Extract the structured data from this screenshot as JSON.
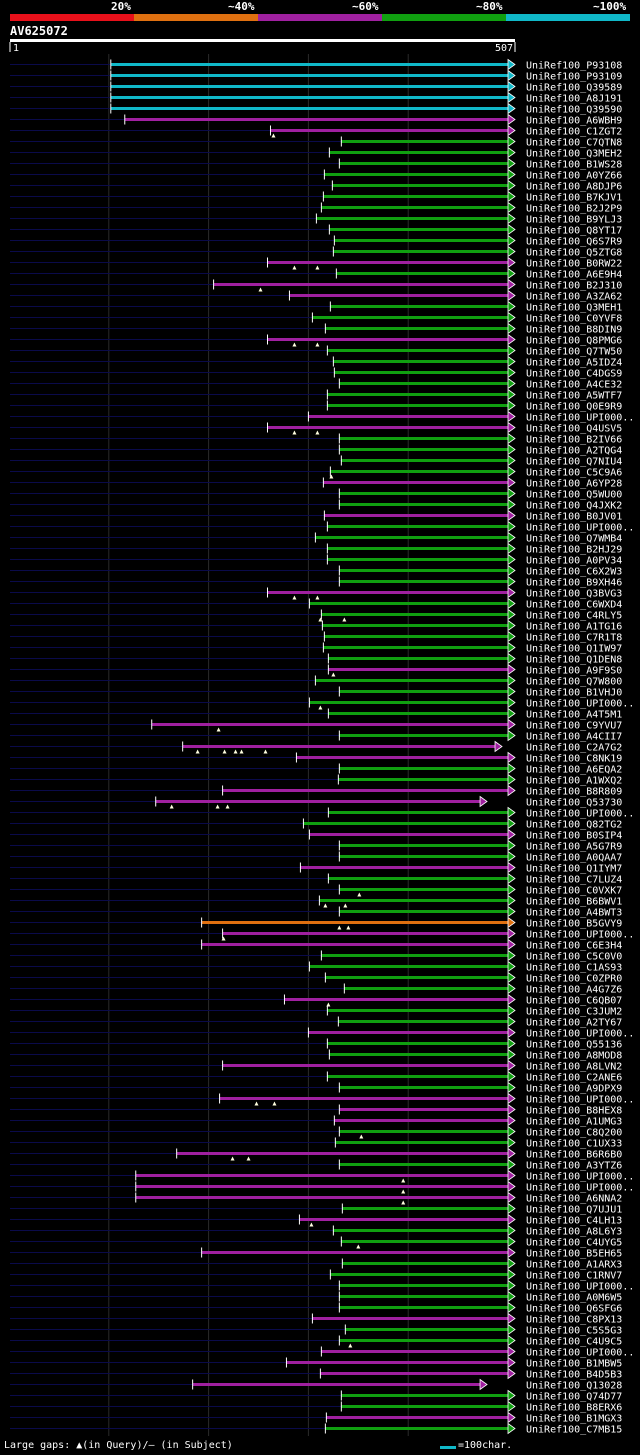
{
  "chart_data": {
    "type": "blast-alignment-graphic",
    "query": "AV625072",
    "query_start": 1,
    "query_end": 507,
    "identity_legend": [
      {
        "label": "20%",
        "color": "#e8101a"
      },
      {
        "label": "~40%",
        "color": "#e07010"
      },
      {
        "label": "~60%",
        "color": "#a020a0"
      },
      {
        "label": "~80%",
        "color": "#10a010"
      },
      {
        "label": "~100%",
        "color": "#10b8c8"
      }
    ],
    "hits": [
      {
        "name": "UniRef100_P93108",
        "start": 102,
        "end": 507,
        "color": "#10b8c8",
        "gaps": []
      },
      {
        "name": "UniRef100_P93109",
        "start": 102,
        "end": 507,
        "color": "#10b8c8",
        "gaps": []
      },
      {
        "name": "UniRef100_Q39589",
        "start": 102,
        "end": 507,
        "color": "#10b8c8",
        "gaps": []
      },
      {
        "name": "UniRef100_A8J191",
        "start": 102,
        "end": 507,
        "color": "#10b8c8",
        "gaps": []
      },
      {
        "name": "UniRef100_Q39590",
        "start": 102,
        "end": 507,
        "color": "#10b8c8",
        "gaps": []
      },
      {
        "name": "UniRef100_A6WBH9",
        "start": 116,
        "end": 507,
        "color": "#a020a0",
        "gaps": []
      },
      {
        "name": "UniRef100_C1ZGT2",
        "start": 262,
        "end": 507,
        "color": "#a020a0",
        "gaps": [
          265
        ]
      },
      {
        "name": "UniRef100_C7QTN8",
        "start": 333,
        "end": 507,
        "color": "#10a010",
        "gaps": []
      },
      {
        "name": "UniRef100_Q3MEH2",
        "start": 321,
        "end": 507,
        "color": "#10a010",
        "gaps": []
      },
      {
        "name": "UniRef100_B1WS28",
        "start": 331,
        "end": 507,
        "color": "#10a010",
        "gaps": []
      },
      {
        "name": "UniRef100_A0YZ66",
        "start": 316,
        "end": 507,
        "color": "#10a010",
        "gaps": []
      },
      {
        "name": "UniRef100_A8DJP6",
        "start": 324,
        "end": 507,
        "color": "#10a010",
        "gaps": []
      },
      {
        "name": "UniRef100_B7KJV1",
        "start": 315,
        "end": 507,
        "color": "#10a010",
        "gaps": []
      },
      {
        "name": "UniRef100_B2J2P9",
        "start": 313,
        "end": 507,
        "color": "#10a010",
        "gaps": []
      },
      {
        "name": "UniRef100_B9YLJ3",
        "start": 308,
        "end": 507,
        "color": "#10a010",
        "gaps": []
      },
      {
        "name": "UniRef100_Q8YT17",
        "start": 321,
        "end": 507,
        "color": "#10a010",
        "gaps": []
      },
      {
        "name": "UniRef100_Q6S7R9",
        "start": 326,
        "end": 507,
        "color": "#10a010",
        "gaps": []
      },
      {
        "name": "UniRef100_Q5ZTG8",
        "start": 325,
        "end": 507,
        "color": "#10a010",
        "gaps": []
      },
      {
        "name": "UniRef100_B0RW22",
        "start": 259,
        "end": 507,
        "color": "#a020a0",
        "gaps": [
          286,
          309
        ]
      },
      {
        "name": "UniRef100_A6E9H4",
        "start": 328,
        "end": 507,
        "color": "#10a010",
        "gaps": []
      },
      {
        "name": "UniRef100_B2J310",
        "start": 205,
        "end": 507,
        "color": "#a020a0",
        "gaps": [
          252
        ]
      },
      {
        "name": "UniRef100_A3ZA62",
        "start": 281,
        "end": 507,
        "color": "#a020a0",
        "gaps": []
      },
      {
        "name": "UniRef100_Q3MEH1",
        "start": 322,
        "end": 507,
        "color": "#10a010",
        "gaps": []
      },
      {
        "name": "UniRef100_C0YVF8",
        "start": 304,
        "end": 507,
        "color": "#10a010",
        "gaps": []
      },
      {
        "name": "UniRef100_B8DIN9",
        "start": 317,
        "end": 507,
        "color": "#10a010",
        "gaps": []
      },
      {
        "name": "UniRef100_Q8PMG6",
        "start": 259,
        "end": 507,
        "color": "#a020a0",
        "gaps": [
          286,
          309
        ]
      },
      {
        "name": "UniRef100_Q7TW50",
        "start": 319,
        "end": 507,
        "color": "#10a010",
        "gaps": []
      },
      {
        "name": "UniRef100_A5IDZ4",
        "start": 325,
        "end": 507,
        "color": "#10a010",
        "gaps": []
      },
      {
        "name": "UniRef100_C4DGS9",
        "start": 326,
        "end": 507,
        "color": "#10a010",
        "gaps": []
      },
      {
        "name": "UniRef100_A4CE32",
        "start": 331,
        "end": 507,
        "color": "#10a010",
        "gaps": []
      },
      {
        "name": "UniRef100_A5WTF7",
        "start": 319,
        "end": 507,
        "color": "#10a010",
        "gaps": []
      },
      {
        "name": "UniRef100_Q0E9R9",
        "start": 319,
        "end": 507,
        "color": "#10a010",
        "gaps": []
      },
      {
        "name": "UniRef100_UPI000..",
        "start": 300,
        "end": 507,
        "color": "#a020a0",
        "gaps": []
      },
      {
        "name": "UniRef100_Q4USV5",
        "start": 259,
        "end": 507,
        "color": "#a020a0",
        "gaps": [
          286,
          309
        ]
      },
      {
        "name": "UniRef100_B2IV66",
        "start": 331,
        "end": 507,
        "color": "#10a010",
        "gaps": []
      },
      {
        "name": "UniRef100_A2TQG4",
        "start": 331,
        "end": 507,
        "color": "#10a010",
        "gaps": []
      },
      {
        "name": "UniRef100_Q7NIU4",
        "start": 333,
        "end": 507,
        "color": "#10a010",
        "gaps": []
      },
      {
        "name": "UniRef100_C5C9A6",
        "start": 322,
        "end": 507,
        "color": "#10a010",
        "gaps": [
          323
        ]
      },
      {
        "name": "UniRef100_A6YP28",
        "start": 315,
        "end": 507,
        "color": "#a020a0",
        "gaps": []
      },
      {
        "name": "UniRef100_Q5WU00",
        "start": 331,
        "end": 507,
        "color": "#10a010",
        "gaps": []
      },
      {
        "name": "UniRef100_Q4JXK2",
        "start": 331,
        "end": 507,
        "color": "#10a010",
        "gaps": []
      },
      {
        "name": "UniRef100_B0JV01",
        "start": 316,
        "end": 507,
        "color": "#a020a0",
        "gaps": []
      },
      {
        "name": "UniRef100_UPI000..",
        "start": 319,
        "end": 507,
        "color": "#10a010",
        "gaps": []
      },
      {
        "name": "UniRef100_Q7WMB4",
        "start": 307,
        "end": 507,
        "color": "#10a010",
        "gaps": []
      },
      {
        "name": "UniRef100_B2HJ29",
        "start": 319,
        "end": 507,
        "color": "#10a010",
        "gaps": []
      },
      {
        "name": "UniRef100_A0PV34",
        "start": 319,
        "end": 507,
        "color": "#10a010",
        "gaps": []
      },
      {
        "name": "UniRef100_C6X2W3",
        "start": 331,
        "end": 507,
        "color": "#10a010",
        "gaps": []
      },
      {
        "name": "UniRef100_B9XH46",
        "start": 331,
        "end": 507,
        "color": "#10a010",
        "gaps": []
      },
      {
        "name": "UniRef100_Q3BVG3",
        "start": 259,
        "end": 507,
        "color": "#a020a0",
        "gaps": [
          286,
          309
        ]
      },
      {
        "name": "UniRef100_C6WXD4",
        "start": 301,
        "end": 507,
        "color": "#10a010",
        "gaps": []
      },
      {
        "name": "UniRef100_C4RLY5",
        "start": 313,
        "end": 507,
        "color": "#10a010",
        "gaps": [
          312,
          336
        ]
      },
      {
        "name": "UniRef100_A1TG16",
        "start": 314,
        "end": 507,
        "color": "#10a010",
        "gaps": []
      },
      {
        "name": "UniRef100_C7R1T8",
        "start": 316,
        "end": 507,
        "color": "#10a010",
        "gaps": []
      },
      {
        "name": "UniRef100_Q1IW97",
        "start": 315,
        "end": 507,
        "color": "#10a010",
        "gaps": []
      },
      {
        "name": "UniRef100_Q1DEN8",
        "start": 320,
        "end": 507,
        "color": "#10a010",
        "gaps": []
      },
      {
        "name": "UniRef100_A9F9S0",
        "start": 320,
        "end": 507,
        "color": "#a020a0",
        "gaps": [
          325
        ]
      },
      {
        "name": "UniRef100_Q7W800",
        "start": 307,
        "end": 507,
        "color": "#10a010",
        "gaps": []
      },
      {
        "name": "UniRef100_B1VHJ0",
        "start": 331,
        "end": 507,
        "color": "#10a010",
        "gaps": []
      },
      {
        "name": "UniRef100_UPI000..",
        "start": 301,
        "end": 507,
        "color": "#10a010",
        "gaps": [
          312
        ]
      },
      {
        "name": "UniRef100_A4T5M1",
        "start": 320,
        "end": 507,
        "color": "#10a010",
        "gaps": []
      },
      {
        "name": "UniRef100_C9YVU7",
        "start": 143,
        "end": 507,
        "color": "#a020a0",
        "gaps": [
          210
        ]
      },
      {
        "name": "UniRef100_A4CII7",
        "start": 331,
        "end": 507,
        "color": "#10a010",
        "gaps": []
      },
      {
        "name": "UniRef100_C2A7G2",
        "start": 174,
        "end": 494,
        "color": "#a020a0",
        "gaps": [
          189,
          216,
          227,
          233,
          257
        ]
      },
      {
        "name": "UniRef100_C8NK19",
        "start": 288,
        "end": 507,
        "color": "#a020a0",
        "gaps": []
      },
      {
        "name": "UniRef100_A6EQA2",
        "start": 331,
        "end": 507,
        "color": "#10a010",
        "gaps": []
      },
      {
        "name": "UniRef100_A1WXQ2",
        "start": 330,
        "end": 507,
        "color": "#10a010",
        "gaps": []
      },
      {
        "name": "UniRef100_B8R809",
        "start": 214,
        "end": 507,
        "color": "#a020a0",
        "gaps": []
      },
      {
        "name": "UniRef100_Q53730",
        "start": 147,
        "end": 479,
        "color": "#a020a0",
        "gaps": [
          163,
          209,
          219
        ]
      },
      {
        "name": "UniRef100_UPI000..",
        "start": 320,
        "end": 507,
        "color": "#10a010",
        "gaps": []
      },
      {
        "name": "UniRef100_Q82TG2",
        "start": 295,
        "end": 507,
        "color": "#10a010",
        "gaps": []
      },
      {
        "name": "UniRef100_B0SIP4",
        "start": 301,
        "end": 507,
        "color": "#a020a0",
        "gaps": []
      },
      {
        "name": "UniRef100_A5G7R9",
        "start": 331,
        "end": 507,
        "color": "#10a010",
        "gaps": []
      },
      {
        "name": "UniRef100_A0QAA7",
        "start": 331,
        "end": 507,
        "color": "#10a010",
        "gaps": []
      },
      {
        "name": "UniRef100_Q1IYM7",
        "start": 292,
        "end": 507,
        "color": "#a020a0",
        "gaps": []
      },
      {
        "name": "UniRef100_C7LUZ4",
        "start": 320,
        "end": 507,
        "color": "#10a010",
        "gaps": []
      },
      {
        "name": "UniRef100_C0VXK7",
        "start": 331,
        "end": 507,
        "color": "#10a010",
        "gaps": [
          351
        ]
      },
      {
        "name": "UniRef100_B6BWV1",
        "start": 311,
        "end": 507,
        "color": "#10a010",
        "gaps": [
          317,
          337
        ]
      },
      {
        "name": "UniRef100_A4BWT3",
        "start": 331,
        "end": 507,
        "color": "#10a010",
        "gaps": []
      },
      {
        "name": "UniRef100_B5GVY9",
        "start": 193,
        "end": 507,
        "color": "#e07010",
        "gaps": [
          331,
          340
        ]
      },
      {
        "name": "UniRef100_UPI000..",
        "start": 214,
        "end": 507,
        "color": "#a020a0",
        "gaps": [
          215
        ]
      },
      {
        "name": "UniRef100_C6E3H4",
        "start": 193,
        "end": 507,
        "color": "#a020a0",
        "gaps": []
      },
      {
        "name": "UniRef100_C5C0V0",
        "start": 313,
        "end": 507,
        "color": "#10a010",
        "gaps": []
      },
      {
        "name": "UniRef100_C1AS93",
        "start": 301,
        "end": 507,
        "color": "#10a010",
        "gaps": []
      },
      {
        "name": "UniRef100_C0ZPR0",
        "start": 317,
        "end": 507,
        "color": "#10a010",
        "gaps": []
      },
      {
        "name": "UniRef100_A4G7Z6",
        "start": 336,
        "end": 507,
        "color": "#10a010",
        "gaps": []
      },
      {
        "name": "UniRef100_C6QB07",
        "start": 276,
        "end": 507,
        "color": "#a020a0",
        "gaps": [
          320
        ]
      },
      {
        "name": "UniRef100_C3JUM2",
        "start": 319,
        "end": 507,
        "color": "#10a010",
        "gaps": []
      },
      {
        "name": "UniRef100_A2TY67",
        "start": 330,
        "end": 507,
        "color": "#10a010",
        "gaps": []
      },
      {
        "name": "UniRef100_UPI000..",
        "start": 300,
        "end": 507,
        "color": "#a020a0",
        "gaps": []
      },
      {
        "name": "UniRef100_Q55136",
        "start": 319,
        "end": 507,
        "color": "#10a010",
        "gaps": []
      },
      {
        "name": "UniRef100_A8MOD8",
        "start": 321,
        "end": 507,
        "color": "#10a010",
        "gaps": []
      },
      {
        "name": "UniRef100_A8LVN2",
        "start": 214,
        "end": 507,
        "color": "#a020a0",
        "gaps": []
      },
      {
        "name": "UniRef100_C2ANE6",
        "start": 319,
        "end": 507,
        "color": "#10a010",
        "gaps": []
      },
      {
        "name": "UniRef100_A9DPX9",
        "start": 331,
        "end": 507,
        "color": "#10a010",
        "gaps": []
      },
      {
        "name": "UniRef100_UPI000..",
        "start": 211,
        "end": 507,
        "color": "#a020a0",
        "gaps": [
          248,
          266
        ]
      },
      {
        "name": "UniRef100_B8HEX8",
        "start": 331,
        "end": 507,
        "color": "#a020a0",
        "gaps": []
      },
      {
        "name": "UniRef100_A1UMG3",
        "start": 326,
        "end": 507,
        "color": "#a020a0",
        "gaps": []
      },
      {
        "name": "UniRef100_C8Q200",
        "start": 331,
        "end": 507,
        "color": "#10a010",
        "gaps": [
          353
        ]
      },
      {
        "name": "UniRef100_C1UX33",
        "start": 327,
        "end": 507,
        "color": "#10a010",
        "gaps": []
      },
      {
        "name": "UniRef100_B6R6B0",
        "start": 168,
        "end": 507,
        "color": "#a020a0",
        "gaps": [
          224,
          240
        ]
      },
      {
        "name": "UniRef100_A3YTZ6",
        "start": 331,
        "end": 507,
        "color": "#10a010",
        "gaps": []
      },
      {
        "name": "UniRef100_UPI000..",
        "start": 127,
        "end": 507,
        "color": "#a020a0",
        "gaps": [
          395
        ]
      },
      {
        "name": "UniRef100_UPI000..",
        "start": 127,
        "end": 507,
        "color": "#a020a0",
        "gaps": [
          395
        ]
      },
      {
        "name": "UniRef100_A6NNA2",
        "start": 127,
        "end": 507,
        "color": "#a020a0",
        "gaps": [
          395
        ]
      },
      {
        "name": "UniRef100_Q7UJU1",
        "start": 334,
        "end": 507,
        "color": "#10a010",
        "gaps": []
      },
      {
        "name": "UniRef100_C4LH13",
        "start": 291,
        "end": 507,
        "color": "#a020a0",
        "gaps": [
          303
        ]
      },
      {
        "name": "UniRef100_A8L6Y3",
        "start": 325,
        "end": 507,
        "color": "#10a010",
        "gaps": []
      },
      {
        "name": "UniRef100_C4UYG5",
        "start": 333,
        "end": 507,
        "color": "#10a010",
        "gaps": [
          350
        ]
      },
      {
        "name": "UniRef100_B5EH65",
        "start": 193,
        "end": 507,
        "color": "#a020a0",
        "gaps": []
      },
      {
        "name": "UniRef100_A1ARX3",
        "start": 334,
        "end": 507,
        "color": "#10a010",
        "gaps": []
      },
      {
        "name": "UniRef100_C1RNV7",
        "start": 322,
        "end": 507,
        "color": "#10a010",
        "gaps": []
      },
      {
        "name": "UniRef100_UPI000..",
        "start": 331,
        "end": 507,
        "color": "#10a010",
        "gaps": []
      },
      {
        "name": "UniRef100_A0M6W5",
        "start": 331,
        "end": 507,
        "color": "#10a010",
        "gaps": []
      },
      {
        "name": "UniRef100_Q6SFG6",
        "start": 331,
        "end": 507,
        "color": "#10a010",
        "gaps": []
      },
      {
        "name": "UniRef100_C8PX13",
        "start": 304,
        "end": 507,
        "color": "#a020a0",
        "gaps": []
      },
      {
        "name": "UniRef100_C5S5G3",
        "start": 337,
        "end": 507,
        "color": "#10a010",
        "gaps": []
      },
      {
        "name": "UniRef100_C4U9C5",
        "start": 331,
        "end": 507,
        "color": "#10a010",
        "gaps": [
          342
        ]
      },
      {
        "name": "UniRef100_UPI000..",
        "start": 313,
        "end": 507,
        "color": "#a020a0",
        "gaps": []
      },
      {
        "name": "UniRef100_B1MBW5",
        "start": 278,
        "end": 507,
        "color": "#a020a0",
        "gaps": []
      },
      {
        "name": "UniRef100_B4D5B3",
        "start": 312,
        "end": 507,
        "color": "#a020a0",
        "gaps": []
      },
      {
        "name": "UniRef100_Q13028",
        "start": 184,
        "end": 479,
        "color": "#a020a0",
        "gaps": []
      },
      {
        "name": "UniRef100_Q74D77",
        "start": 333,
        "end": 507,
        "color": "#10a010",
        "gaps": []
      },
      {
        "name": "UniRef100_B8ERX6",
        "start": 333,
        "end": 507,
        "color": "#10a010",
        "gaps": []
      },
      {
        "name": "UniRef100_B1MGX3",
        "start": 318,
        "end": 507,
        "color": "#a020a0",
        "gaps": []
      },
      {
        "name": "UniRef100_C7MB15",
        "start": 317,
        "end": 507,
        "color": "#10a010",
        "gaps": []
      }
    ]
  },
  "footer": {
    "gaps_label": "Large gaps: ▲(in Query)/– (in Subject)",
    "scale_label": "=100char."
  }
}
